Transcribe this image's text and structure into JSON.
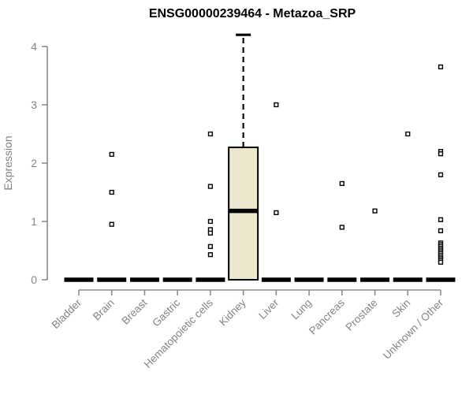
{
  "chart_data": {
    "type": "boxplot",
    "title": "ENSG00000239464 - Metazoa_SRP",
    "ylabel": "Expression",
    "ylim": [
      0,
      4.3
    ],
    "yticks": [
      0,
      1,
      2,
      3,
      4
    ],
    "grid": false,
    "legend": "none",
    "categories": [
      "Bladder",
      "Brain",
      "Breast",
      "Gastric",
      "Hematopoietic cells",
      "Kidney",
      "Liver",
      "Lung",
      "Pancreas",
      "Prostate",
      "Skin",
      "Unknown / Other"
    ],
    "boxes": [
      {
        "category": "Bladder",
        "q1": 0,
        "median": 0,
        "q3": 0,
        "whisker_low": 0,
        "whisker_high": 0,
        "outliers": []
      },
      {
        "category": "Brain",
        "q1": 0,
        "median": 0,
        "q3": 0,
        "whisker_low": 0,
        "whisker_high": 0,
        "outliers": [
          2.15,
          1.5,
          0.95
        ]
      },
      {
        "category": "Breast",
        "q1": 0,
        "median": 0,
        "q3": 0,
        "whisker_low": 0,
        "whisker_high": 0,
        "outliers": []
      },
      {
        "category": "Gastric",
        "q1": 0,
        "median": 0,
        "q3": 0,
        "whisker_low": 0,
        "whisker_high": 0,
        "outliers": []
      },
      {
        "category": "Hematopoietic cells",
        "q1": 0,
        "median": 0,
        "q3": 0,
        "whisker_low": 0,
        "whisker_high": 0,
        "outliers": [
          2.5,
          1.6,
          1.0,
          0.86,
          0.8,
          0.57,
          0.43
        ]
      },
      {
        "category": "Kidney",
        "q1": 0,
        "median": 1.18,
        "q3": 2.27,
        "whisker_low": 0,
        "whisker_high": 4.2,
        "outliers": []
      },
      {
        "category": "Liver",
        "q1": 0,
        "median": 0,
        "q3": 0,
        "whisker_low": 0,
        "whisker_high": 0,
        "outliers": [
          3.0,
          1.15
        ]
      },
      {
        "category": "Lung",
        "q1": 0,
        "median": 0,
        "q3": 0,
        "whisker_low": 0,
        "whisker_high": 0,
        "outliers": []
      },
      {
        "category": "Pancreas",
        "q1": 0,
        "median": 0,
        "q3": 0,
        "whisker_low": 0,
        "whisker_high": 0,
        "outliers": [
          1.65,
          0.9
        ]
      },
      {
        "category": "Prostate",
        "q1": 0,
        "median": 0,
        "q3": 0,
        "whisker_low": 0,
        "whisker_high": 0,
        "outliers": [
          1.18
        ]
      },
      {
        "category": "Skin",
        "q1": 0,
        "median": 0,
        "q3": 0,
        "whisker_low": 0,
        "whisker_high": 0,
        "outliers": [
          2.5
        ]
      },
      {
        "category": "Unknown / Other",
        "q1": 0,
        "median": 0,
        "q3": 0,
        "whisker_low": 0,
        "whisker_high": 0,
        "outliers": [
          3.65,
          2.2,
          2.16,
          1.8,
          1.03,
          0.84,
          0.63,
          0.6,
          0.57,
          0.54,
          0.51,
          0.48,
          0.45,
          0.42,
          0.39,
          0.36,
          0.33,
          0.3
        ]
      }
    ],
    "colors": {
      "box_fill": "#ece6cc",
      "box_border": "#000000",
      "median": "#000000",
      "whisker": "#000000",
      "outlier": "#000000",
      "axis": "#8c8c8c",
      "tick_label": "#838383",
      "title": "#000000"
    }
  }
}
